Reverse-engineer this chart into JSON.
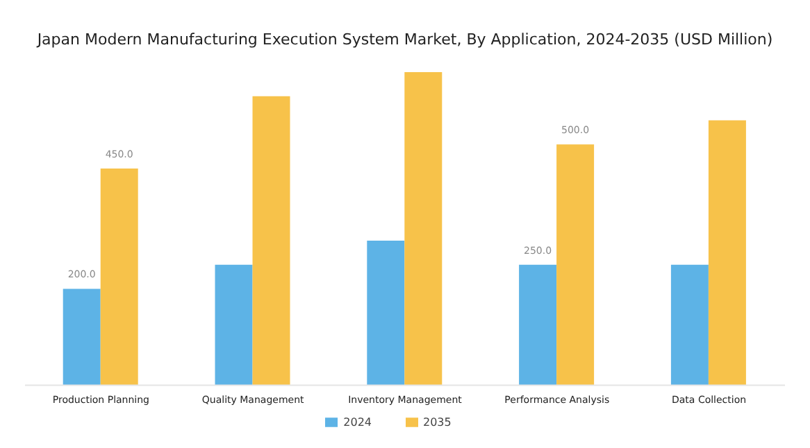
{
  "chart_data": {
    "type": "bar",
    "title": "Japan Modern Manufacturing Execution System Market, By Application, 2024-2035 (USD Million)",
    "categories": [
      "Production Planning",
      "Quality Management",
      "Inventory Management",
      "Performance Analysis",
      "Data Collection"
    ],
    "series": [
      {
        "name": "2024",
        "color": "#5db3e6",
        "values": [
          200,
          250,
          300,
          250,
          250
        ],
        "value_labels": [
          "200.0",
          null,
          null,
          "250.0",
          null
        ]
      },
      {
        "name": "2035",
        "color": "#f7c24a",
        "values": [
          450,
          600,
          650,
          500,
          550
        ],
        "value_labels": [
          "450.0",
          null,
          null,
          "500.0",
          null
        ]
      }
    ],
    "legend": "bottom",
    "grid": false
  }
}
